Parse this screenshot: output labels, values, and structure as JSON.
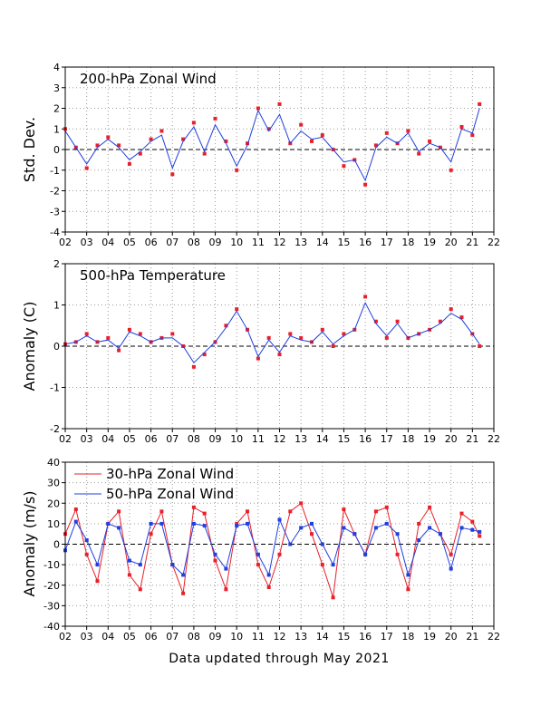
{
  "footer": "Data updated through May 2021",
  "colors": {
    "red": "#e8202a",
    "blue": "#1f3fdf",
    "line": "#1f3fdf",
    "zero": "#000000",
    "grid": "#9a9a9a"
  },
  "chart_data": [
    {
      "type": "scatter",
      "title": "200-hPa Zonal Wind",
      "ylabel": "Std. Dev.",
      "xlim": [
        2002,
        2022
      ],
      "ylim": [
        -4,
        4
      ],
      "xticks": [
        "02",
        "03",
        "04",
        "05",
        "06",
        "07",
        "08",
        "09",
        "10",
        "11",
        "12",
        "13",
        "14",
        "15",
        "16",
        "17",
        "18",
        "19",
        "20",
        "21",
        "22"
      ],
      "yticks": [
        "4",
        "3",
        "2",
        "1",
        "0",
        "-1",
        "-2",
        "-3",
        "-4"
      ],
      "grid": true,
      "series": [
        {
          "kind": "points",
          "color": "red",
          "x": [
            2002.0,
            2002.5,
            2003.0,
            2003.5,
            2004.0,
            2004.5,
            2005.0,
            2005.5,
            2006.0,
            2006.5,
            2007.0,
            2007.5,
            2008.0,
            2008.5,
            2009.0,
            2009.5,
            2010.0,
            2010.5,
            2011.0,
            2011.5,
            2012.0,
            2012.5,
            2013.0,
            2013.5,
            2014.0,
            2014.5,
            2015.0,
            2015.5,
            2016.0,
            2016.5,
            2017.0,
            2017.5,
            2018.0,
            2018.5,
            2019.0,
            2019.5,
            2020.0,
            2020.5,
            2021.0,
            2021.33
          ],
          "y": [
            1.0,
            0.1,
            -0.9,
            0.2,
            0.6,
            0.2,
            -0.7,
            -0.2,
            0.5,
            0.9,
            -1.2,
            0.5,
            1.3,
            -0.2,
            1.5,
            0.4,
            -1.0,
            0.3,
            2.0,
            1.0,
            2.2,
            0.3,
            1.2,
            0.4,
            0.7,
            0.0,
            -0.8,
            -0.5,
            -1.7,
            0.2,
            0.8,
            0.3,
            0.9,
            -0.2,
            0.4,
            0.1,
            -1.0,
            1.1,
            0.7,
            2.2
          ]
        },
        {
          "kind": "line",
          "color": "line",
          "x": [
            2002.0,
            2002.5,
            2003.0,
            2003.5,
            2004.0,
            2004.5,
            2005.0,
            2005.5,
            2006.0,
            2006.5,
            2007.0,
            2007.5,
            2008.0,
            2008.5,
            2009.0,
            2009.5,
            2010.0,
            2010.5,
            2011.0,
            2011.5,
            2012.0,
            2012.5,
            2013.0,
            2013.5,
            2014.0,
            2014.5,
            2015.0,
            2015.5,
            2016.0,
            2016.5,
            2017.0,
            2017.5,
            2018.0,
            2018.5,
            2019.0,
            2019.5,
            2020.0,
            2020.5,
            2021.0,
            2021.33
          ],
          "y": [
            0.9,
            0.1,
            -0.7,
            0.1,
            0.5,
            0.1,
            -0.5,
            -0.1,
            0.4,
            0.7,
            -0.9,
            0.4,
            1.1,
            -0.1,
            1.2,
            0.3,
            -0.8,
            0.2,
            1.9,
            0.9,
            1.7,
            0.3,
            0.9,
            0.5,
            0.6,
            0.0,
            -0.6,
            -0.5,
            -1.5,
            0.1,
            0.6,
            0.3,
            0.8,
            -0.1,
            0.3,
            0.1,
            -0.6,
            1.0,
            0.8,
            2.0
          ]
        }
      ]
    },
    {
      "type": "scatter",
      "title": "500-hPa Temperature",
      "ylabel": "Anomaly (C)",
      "xlim": [
        2002,
        2022
      ],
      "ylim": [
        -2,
        2
      ],
      "xticks": [
        "02",
        "03",
        "04",
        "05",
        "06",
        "07",
        "08",
        "09",
        "10",
        "11",
        "12",
        "13",
        "14",
        "15",
        "16",
        "17",
        "18",
        "19",
        "20",
        "21",
        "22"
      ],
      "yticks": [
        "2",
        "1",
        "0",
        "-1",
        "-2"
      ],
      "grid": true,
      "series": [
        {
          "kind": "points",
          "color": "red",
          "x": [
            2002.0,
            2002.5,
            2003.0,
            2003.5,
            2004.0,
            2004.5,
            2005.0,
            2005.5,
            2006.0,
            2006.5,
            2007.0,
            2007.5,
            2008.0,
            2008.5,
            2009.0,
            2009.5,
            2010.0,
            2010.5,
            2011.0,
            2011.5,
            2012.0,
            2012.5,
            2013.0,
            2013.5,
            2014.0,
            2014.5,
            2015.0,
            2015.5,
            2016.0,
            2016.5,
            2017.0,
            2017.5,
            2018.0,
            2018.5,
            2019.0,
            2019.5,
            2020.0,
            2020.5,
            2021.0,
            2021.33
          ],
          "y": [
            0.05,
            0.1,
            0.3,
            0.1,
            0.2,
            -0.1,
            0.4,
            0.3,
            0.1,
            0.2,
            0.3,
            0.0,
            -0.5,
            -0.2,
            0.1,
            0.5,
            0.9,
            0.4,
            -0.3,
            0.2,
            -0.2,
            0.3,
            0.2,
            0.1,
            0.4,
            0.0,
            0.3,
            0.4,
            1.2,
            0.6,
            0.2,
            0.6,
            0.2,
            0.3,
            0.4,
            0.6,
            0.9,
            0.7,
            0.3,
            0.0
          ]
        },
        {
          "kind": "line",
          "color": "line",
          "x": [
            2002.0,
            2002.5,
            2003.0,
            2003.5,
            2004.0,
            2004.5,
            2005.0,
            2005.5,
            2006.0,
            2006.5,
            2007.0,
            2007.5,
            2008.0,
            2008.5,
            2009.0,
            2009.5,
            2010.0,
            2010.5,
            2011.0,
            2011.5,
            2012.0,
            2012.5,
            2013.0,
            2013.5,
            2014.0,
            2014.5,
            2015.0,
            2015.5,
            2016.0,
            2016.5,
            2017.0,
            2017.5,
            2018.0,
            2018.5,
            2019.0,
            2019.5,
            2020.0,
            2020.5,
            2021.0,
            2021.33
          ],
          "y": [
            0.05,
            0.1,
            0.25,
            0.1,
            0.15,
            -0.05,
            0.35,
            0.25,
            0.1,
            0.2,
            0.2,
            0.0,
            -0.4,
            -0.15,
            0.1,
            0.45,
            0.85,
            0.4,
            -0.25,
            0.15,
            -0.15,
            0.25,
            0.15,
            0.1,
            0.35,
            0.05,
            0.25,
            0.4,
            1.05,
            0.55,
            0.25,
            0.55,
            0.2,
            0.3,
            0.4,
            0.55,
            0.8,
            0.65,
            0.3,
            0.05
          ]
        }
      ]
    },
    {
      "type": "scatter",
      "title": "",
      "ylabel": "Anomaly (m/s)",
      "xlim": [
        2002,
        2022
      ],
      "ylim": [
        -40,
        40
      ],
      "xticks": [
        "02",
        "03",
        "04",
        "05",
        "06",
        "07",
        "08",
        "09",
        "10",
        "11",
        "12",
        "13",
        "14",
        "15",
        "16",
        "17",
        "18",
        "19",
        "20",
        "21",
        "22"
      ],
      "yticks": [
        "40",
        "30",
        "20",
        "10",
        "0",
        "-10",
        "-20",
        "-30",
        "-40"
      ],
      "grid": true,
      "legend": {
        "position": "top-left"
      },
      "series": [
        {
          "name": "30-hPa Zonal Wind",
          "kind": "points+line",
          "color": "red",
          "x": [
            2002.0,
            2002.5,
            2003.0,
            2003.5,
            2004.0,
            2004.5,
            2005.0,
            2005.5,
            2006.0,
            2006.5,
            2007.0,
            2007.5,
            2008.0,
            2008.5,
            2009.0,
            2009.5,
            2010.0,
            2010.5,
            2011.0,
            2011.5,
            2012.0,
            2012.5,
            2013.0,
            2013.5,
            2014.0,
            2014.5,
            2015.0,
            2015.5,
            2016.0,
            2016.5,
            2017.0,
            2017.5,
            2018.0,
            2018.5,
            2019.0,
            2019.5,
            2020.0,
            2020.5,
            2021.0,
            2021.33
          ],
          "y": [
            5,
            17,
            -5,
            -18,
            10,
            16,
            -15,
            -22,
            5,
            16,
            -10,
            -24,
            18,
            15,
            -8,
            -22,
            10,
            16,
            -10,
            -21,
            -5,
            16,
            20,
            5,
            -10,
            -26,
            17,
            5,
            -5,
            16,
            18,
            -5,
            -22,
            10,
            18,
            5,
            -5,
            15,
            11,
            4
          ]
        },
        {
          "name": "50-hPa Zonal Wind",
          "kind": "points+line",
          "color": "blue",
          "x": [
            2002.0,
            2002.5,
            2003.0,
            2003.5,
            2004.0,
            2004.5,
            2005.0,
            2005.5,
            2006.0,
            2006.5,
            2007.0,
            2007.5,
            2008.0,
            2008.5,
            2009.0,
            2009.5,
            2010.0,
            2010.5,
            2011.0,
            2011.5,
            2012.0,
            2012.5,
            2013.0,
            2013.5,
            2014.0,
            2014.5,
            2015.0,
            2015.5,
            2016.0,
            2016.5,
            2017.0,
            2017.5,
            2018.0,
            2018.5,
            2019.0,
            2019.5,
            2020.0,
            2020.5,
            2021.0,
            2021.33
          ],
          "y": [
            -3,
            11,
            2,
            -10,
            10,
            8,
            -8,
            -10,
            10,
            10,
            -10,
            -15,
            10,
            9,
            -5,
            -12,
            9,
            10,
            -5,
            -15,
            12,
            0,
            8,
            10,
            0,
            -10,
            8,
            5,
            -5,
            8,
            10,
            5,
            -15,
            2,
            8,
            5,
            -12,
            8,
            7,
            6
          ]
        }
      ]
    }
  ]
}
